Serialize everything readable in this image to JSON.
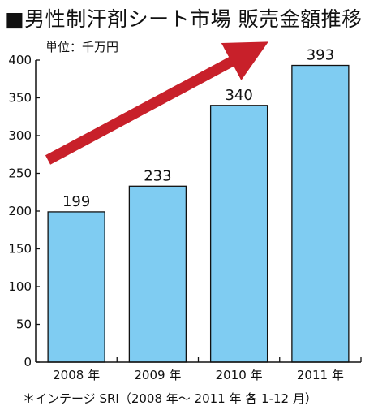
{
  "title": "■男性制汗剤シート市場 販売金額推移",
  "source": "＊インテージ SRI（2008 年〜 2011 年 各 1-12 月）",
  "colors": {
    "bar": "#7fccf2",
    "arrow": "#c8202a",
    "axis": "#111111"
  },
  "chart_data": {
    "type": "bar",
    "unit_label": "単位：千万円",
    "categories": [
      "2008 年",
      "2009 年",
      "2010 年",
      "2011 年"
    ],
    "values": [
      199,
      233,
      340,
      393
    ],
    "ylim": [
      0,
      400
    ],
    "yticks": [
      0,
      50,
      100,
      150,
      200,
      250,
      300,
      350,
      400
    ],
    "grid": false,
    "annotations": [
      "upward-trend-arrow"
    ]
  }
}
